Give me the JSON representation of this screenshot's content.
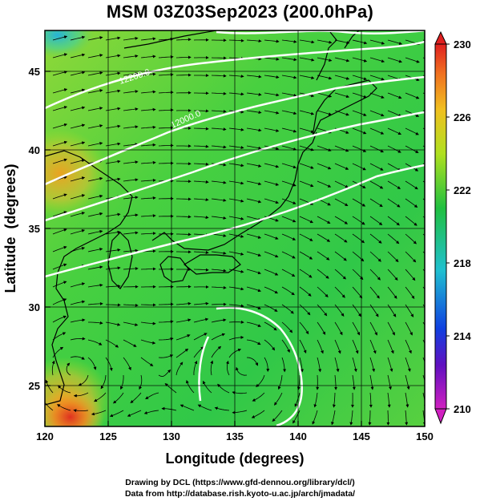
{
  "chart_data": {
    "type": "heatmap",
    "title": "MSM 03Z03Sep2023 (200.0hPa)",
    "xlabel": "Longitude (degrees)",
    "ylabel": "Latitude  (degrees)",
    "xlim": [
      120,
      150
    ],
    "ylim": [
      22.4,
      47.6
    ],
    "xticks": [
      120,
      125,
      130,
      135,
      140,
      145,
      150
    ],
    "yticks": [
      25,
      30,
      35,
      40,
      45
    ],
    "colorbar": {
      "range": [
        210,
        230
      ],
      "ticks": [
        210,
        214,
        218,
        222,
        226,
        230
      ]
    },
    "contour_labels": [
      "12200.0",
      "12000.0"
    ],
    "colors": {
      "low": "#d020c0",
      "blue": "#1040e0",
      "cyan": "#20c0d0",
      "green": "#20c040",
      "yellowgreen": "#b0e020",
      "orange": "#f0a020",
      "red": "#e03020"
    },
    "warm_spots": [
      {
        "lon": 121.2,
        "lat": 38.5,
        "value": 225.5
      },
      {
        "lon": 121.5,
        "lat": 24.0,
        "value": 226.5
      },
      {
        "lon": 122.0,
        "lat": 23.0,
        "value": 228.5
      }
    ],
    "cold_spots": [
      {
        "lon": 121.0,
        "lat": 47.3,
        "value": 219.5
      }
    ],
    "cyclones": [
      {
        "lon": 136.0,
        "lat": 26.2
      },
      {
        "lon": 122.2,
        "lat": 26.0
      }
    ]
  },
  "credits": {
    "line1": "Drawing by DCL (https://www.gfd-dennou.org/library/dcl/)",
    "line2": "Data from http://database.rish.kyoto-u.ac.jp/arch/jmadata/"
  }
}
